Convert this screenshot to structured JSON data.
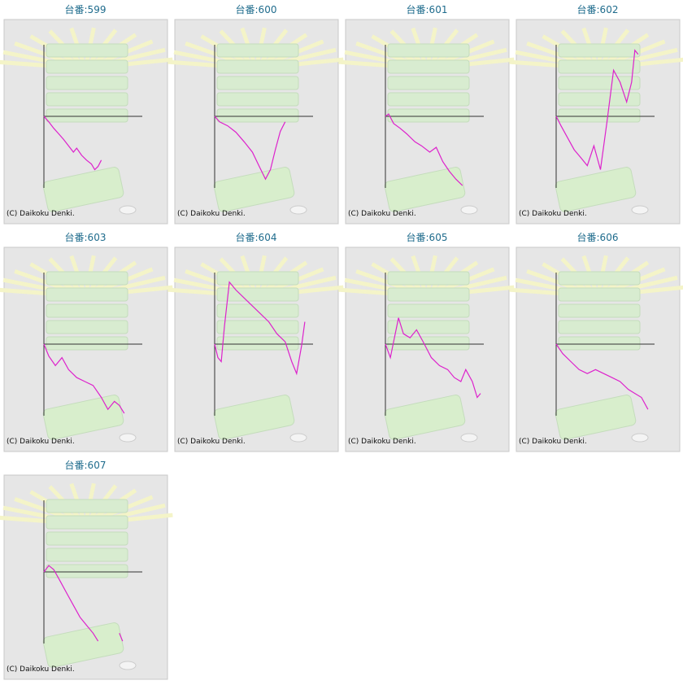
{
  "chart_data": [
    {
      "type": "line",
      "title": "台番:599",
      "copyright": "(C) Daikoku Denki.",
      "color": "#dd22cc",
      "xlim": [
        0,
        120
      ],
      "ylim": [
        -90,
        90
      ],
      "x": [
        0,
        6,
        12,
        18,
        24,
        30,
        36,
        40,
        46,
        52,
        58,
        62,
        66,
        70
      ],
      "values": [
        0,
        -7,
        -15,
        -22,
        -29,
        -37,
        -45,
        -40,
        -49,
        -55,
        -60,
        -67,
        -63,
        -55
      ]
    },
    {
      "type": "line",
      "title": "台番:600",
      "copyright": "(C) Daikoku Denki.",
      "color": "#dd22cc",
      "xlim": [
        0,
        120
      ],
      "ylim": [
        -90,
        90
      ],
      "x": [
        0,
        6,
        16,
        26,
        36,
        46,
        54,
        62,
        68,
        74,
        80,
        86
      ],
      "values": [
        0,
        -7,
        -12,
        -20,
        -32,
        -45,
        -62,
        -79,
        -67,
        -42,
        -19,
        -7
      ]
    },
    {
      "type": "line",
      "title": "台番:601",
      "copyright": "(C) Daikoku Denki.",
      "color": "#dd22cc",
      "xlim": [
        0,
        120
      ],
      "ylim": [
        -90,
        90
      ],
      "x": [
        0,
        4,
        10,
        18,
        26,
        36,
        44,
        54,
        62,
        70,
        78,
        86,
        94
      ],
      "values": [
        0,
        3,
        -9,
        -15,
        -22,
        -32,
        -37,
        -45,
        -39,
        -57,
        -69,
        -79,
        -87
      ]
    },
    {
      "type": "line",
      "title": "台番:602",
      "copyright": "(C) Daikoku Denki.",
      "color": "#dd22cc",
      "xlim": [
        0,
        120
      ],
      "ylim": [
        -90,
        90
      ],
      "x": [
        0,
        6,
        14,
        22,
        30,
        38,
        46,
        54,
        62,
        70,
        78,
        86,
        92,
        96,
        100
      ],
      "values": [
        0,
        -12,
        -27,
        -42,
        -52,
        -62,
        -37,
        -67,
        -7,
        58,
        43,
        18,
        43,
        83,
        78
      ]
    },
    {
      "type": "line",
      "title": "台番:603",
      "copyright": "(C) Daikoku Denki.",
      "color": "#dd22cc",
      "xlim": [
        0,
        120
      ],
      "ylim": [
        -90,
        90
      ],
      "x": [
        0,
        6,
        14,
        22,
        30,
        40,
        50,
        60,
        70,
        78,
        86,
        92,
        98
      ],
      "values": [
        0,
        -15,
        -27,
        -17,
        -32,
        -42,
        -47,
        -52,
        -67,
        -82,
        -72,
        -77,
        -87
      ]
    },
    {
      "type": "line",
      "title": "台番:604",
      "copyright": "(C) Daikoku Denki.",
      "color": "#dd22cc",
      "xlim": [
        0,
        120
      ],
      "ylim": [
        -90,
        90
      ],
      "x": [
        0,
        4,
        8,
        12,
        18,
        26,
        36,
        46,
        56,
        66,
        76,
        86,
        94,
        100,
        106,
        110
      ],
      "values": [
        0,
        -17,
        -22,
        23,
        78,
        68,
        58,
        48,
        38,
        28,
        13,
        3,
        -22,
        -37,
        -2,
        28
      ]
    },
    {
      "type": "line",
      "title": "台番:605",
      "copyright": "(C) Daikoku Denki.",
      "color": "#dd22cc",
      "xlim": [
        0,
        120
      ],
      "ylim": [
        -90,
        90
      ],
      "x": [
        0,
        6,
        12,
        16,
        22,
        30,
        38,
        46,
        56,
        66,
        76,
        84,
        92,
        98,
        106,
        112,
        116
      ],
      "values": [
        0,
        -17,
        13,
        33,
        13,
        8,
        18,
        3,
        -17,
        -27,
        -32,
        -42,
        -47,
        -32,
        -47,
        -67,
        -62
      ]
    },
    {
      "type": "line",
      "title": "台番:606",
      "copyright": "(C) Daikoku Denki.",
      "color": "#dd22cc",
      "xlim": [
        0,
        120
      ],
      "ylim": [
        -90,
        90
      ],
      "x": [
        0,
        8,
        18,
        28,
        38,
        48,
        58,
        68,
        78,
        88,
        96,
        104,
        112
      ],
      "values": [
        0,
        -12,
        -22,
        -32,
        -37,
        -32,
        -37,
        -42,
        -47,
        -57,
        -62,
        -67,
        -82
      ]
    },
    {
      "type": "line",
      "title": "台番:607",
      "copyright": "(C) Daikoku Denki.",
      "color": "#dd22cc",
      "xlim": [
        0,
        120
      ],
      "ylim": [
        -90,
        90
      ],
      "x": [
        0,
        6,
        12,
        20,
        28,
        36,
        44,
        52,
        60,
        66,
        80,
        92,
        96
      ],
      "values": [
        0,
        8,
        3,
        -12,
        -27,
        -42,
        -57,
        -67,
        -77,
        -87,
        null,
        -77,
        -87
      ]
    }
  ]
}
